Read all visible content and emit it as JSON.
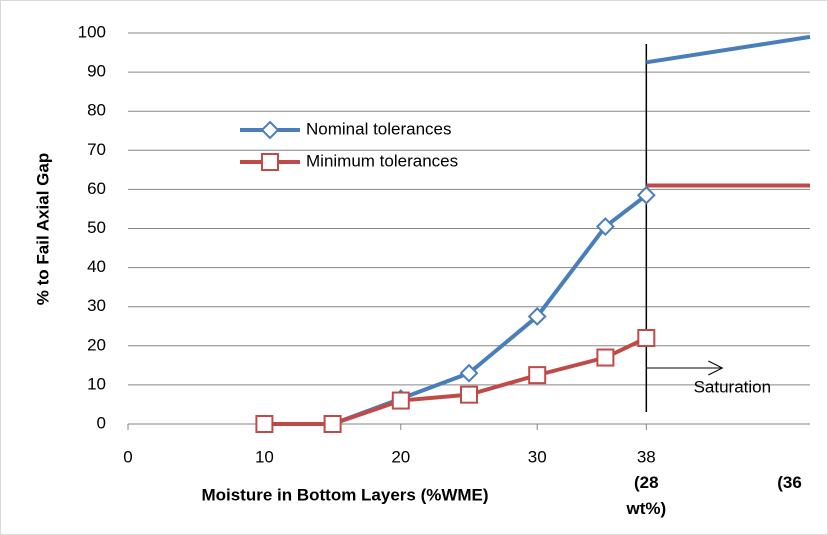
{
  "chart_data": {
    "type": "line",
    "y_label": "% to Fail Axial Gap",
    "x_label": "Moisture in Bottom Layers (%WME)",
    "x": [
      10,
      15,
      20,
      25,
      30,
      35,
      38
    ],
    "series": [
      {
        "name": "Nominal tolerances",
        "color": "#4a7ebb",
        "marker": "diamond",
        "values": [
          0,
          0,
          6.5,
          13,
          27.5,
          50.5,
          58.5
        ]
      },
      {
        "name": "Minimum tolerances",
        "color": "#be4b48",
        "marker": "square",
        "values": [
          0,
          0,
          6,
          7.5,
          12.5,
          17,
          22
        ]
      }
    ],
    "saturation_lines": [
      {
        "color": "#4a7ebb",
        "x": [
          38,
          50
        ],
        "values": [
          92.5,
          99
        ]
      },
      {
        "color": "#be4b48",
        "x": [
          38,
          50
        ],
        "values": [
          61,
          61
        ]
      }
    ],
    "threshold_x": 38,
    "annotation": "Saturation",
    "x_notes": [
      {
        "x": 38,
        "label": "(28 wt%)"
      },
      {
        "x": 48.5,
        "label": "(36"
      }
    ],
    "xlim": [
      0,
      50
    ],
    "xticks": [
      0,
      10,
      20,
      30,
      38
    ],
    "ylim": [
      0,
      100
    ],
    "yticks": [
      0,
      10,
      20,
      30,
      40,
      50,
      60,
      70,
      80,
      90,
      100
    ],
    "grid": true
  }
}
